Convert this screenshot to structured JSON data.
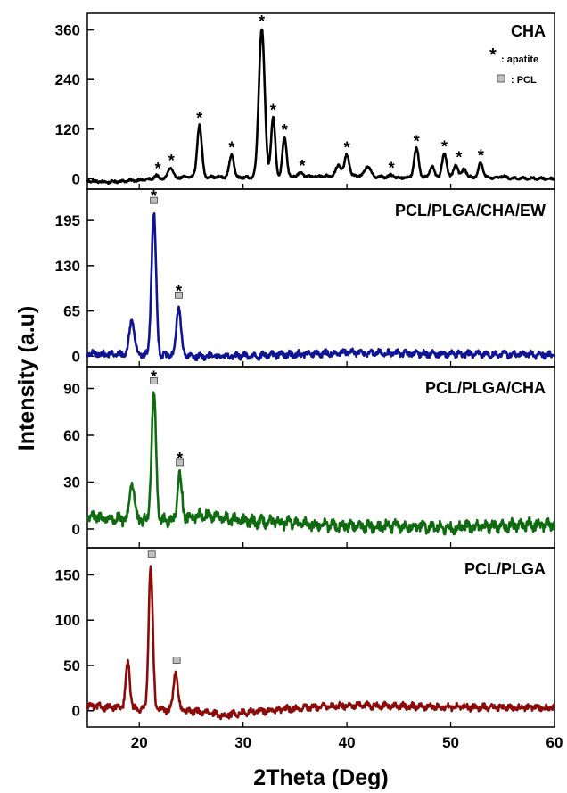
{
  "chart_data": {
    "type": "line",
    "xlabel": "2Theta (Deg)",
    "ylabel": "Intensity (a.u)",
    "xlim": [
      15,
      60
    ],
    "xticks": [
      20,
      30,
      40,
      50,
      60
    ],
    "legend": {
      "apatite_marker": "*",
      "apatite_label": ": apatite",
      "pcl_label": ": PCL"
    },
    "panels": [
      {
        "name": "CHA",
        "color": "#000000",
        "ylim": [
          -25,
          400
        ],
        "yticks": [
          0,
          120,
          240,
          360
        ],
        "baseline": [
          [
            15,
            -5
          ],
          [
            17,
            -8
          ],
          [
            20,
            -3
          ],
          [
            25,
            5
          ],
          [
            30,
            3
          ],
          [
            35,
            5
          ],
          [
            40,
            8
          ],
          [
            45,
            3
          ],
          [
            50,
            5
          ],
          [
            55,
            2
          ],
          [
            60,
            0
          ]
        ],
        "noise": 2.5,
        "peaks": [
          {
            "x": 21.6,
            "h": 8,
            "w": 0.2
          },
          {
            "x": 23.0,
            "h": 25,
            "w": 0.22
          },
          {
            "x": 25.8,
            "h": 125,
            "w": 0.22
          },
          {
            "x": 28.9,
            "h": 55,
            "w": 0.22
          },
          {
            "x": 31.8,
            "h": 360,
            "w": 0.28
          },
          {
            "x": 32.9,
            "h": 145,
            "w": 0.2
          },
          {
            "x": 34.0,
            "h": 95,
            "w": 0.2
          },
          {
            "x": 35.5,
            "h": 8,
            "w": 0.25
          },
          {
            "x": 39.2,
            "h": 25,
            "w": 0.25
          },
          {
            "x": 40.0,
            "h": 50,
            "w": 0.22
          },
          {
            "x": 42.0,
            "h": 25,
            "w": 0.25
          },
          {
            "x": 44.3,
            "h": 5,
            "w": 0.2
          },
          {
            "x": 46.7,
            "h": 70,
            "w": 0.22
          },
          {
            "x": 48.2,
            "h": 25,
            "w": 0.2
          },
          {
            "x": 49.4,
            "h": 55,
            "w": 0.22
          },
          {
            "x": 50.5,
            "h": 30,
            "w": 0.2
          },
          {
            "x": 51.3,
            "h": 20,
            "w": 0.2
          },
          {
            "x": 52.9,
            "h": 35,
            "w": 0.22
          },
          {
            "x": 55.0,
            "h": 4,
            "w": 0.25
          }
        ],
        "apatite_marks": [
          21.8,
          23.1,
          25.8,
          28.9,
          31.8,
          32.9,
          34.0,
          35.7,
          40.0,
          44.3,
          46.7,
          49.4,
          50.8,
          52.9
        ],
        "pcl_marks": []
      },
      {
        "name": "PCL/PLGA/CHA/EW",
        "color": "#0f1494",
        "ylim": [
          -15,
          240
        ],
        "yticks": [
          0,
          65,
          130,
          195
        ],
        "baseline": [
          [
            15,
            3
          ],
          [
            20,
            2
          ],
          [
            25,
            0
          ],
          [
            30,
            0
          ],
          [
            40,
            5
          ],
          [
            50,
            3
          ],
          [
            60,
            2
          ]
        ],
        "noise": 4,
        "peaks": [
          {
            "x": 19.3,
            "h": 50,
            "w": 0.25
          },
          {
            "x": 21.4,
            "h": 205,
            "w": 0.22
          },
          {
            "x": 23.8,
            "h": 70,
            "w": 0.22
          }
        ],
        "apatite_marks": [
          21.4,
          23.8
        ],
        "pcl_marks": [
          21.4,
          23.8
        ]
      },
      {
        "name": "PCL/PLGA/CHA",
        "color": "#0f6b10",
        "ylim": [
          -12,
          104
        ],
        "yticks": [
          0,
          30,
          60,
          90
        ],
        "baseline": [
          [
            15,
            8
          ],
          [
            18,
            6
          ],
          [
            22,
            5
          ],
          [
            26,
            9
          ],
          [
            30,
            5
          ],
          [
            40,
            2
          ],
          [
            50,
            1
          ],
          [
            60,
            3
          ]
        ],
        "noise": 3,
        "peaks": [
          {
            "x": 19.3,
            "h": 25,
            "w": 0.22
          },
          {
            "x": 21.4,
            "h": 82,
            "w": 0.22
          },
          {
            "x": 23.9,
            "h": 28,
            "w": 0.2
          }
        ],
        "apatite_marks": [
          21.4,
          23.9
        ],
        "pcl_marks": [
          21.4,
          23.9
        ]
      },
      {
        "name": "PCL/PLGA",
        "color": "#8b0a0a",
        "ylim": [
          -18,
          180
        ],
        "yticks": [
          0,
          50,
          100,
          150
        ],
        "baseline": [
          [
            15,
            5
          ],
          [
            20,
            2
          ],
          [
            25,
            0
          ],
          [
            28,
            -5
          ],
          [
            32,
            0
          ],
          [
            40,
            6
          ],
          [
            50,
            4
          ],
          [
            60,
            3
          ]
        ],
        "noise": 3,
        "peaks": [
          {
            "x": 18.9,
            "h": 50,
            "w": 0.2
          },
          {
            "x": 21.1,
            "h": 158,
            "w": 0.2
          },
          {
            "x": 23.5,
            "h": 42,
            "w": 0.2
          }
        ],
        "apatite_marks": [],
        "pcl_marks": [
          21.2,
          23.6
        ]
      }
    ]
  }
}
